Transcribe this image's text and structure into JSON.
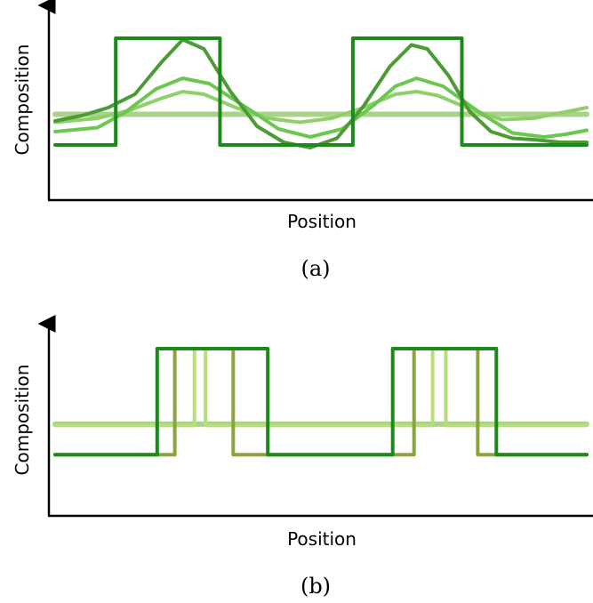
{
  "chart_data": [
    {
      "type": "line",
      "panel": "(a)",
      "xlabel": "Position",
      "ylabel": "Composition",
      "ticks": "none",
      "grid": false,
      "x_domain": [
        0,
        100
      ],
      "y_domain": [
        0,
        100
      ],
      "series": [
        {
          "color": "#a9d38a",
          "points": [
            [
              0,
              43
            ],
            [
              100,
              43
            ]
          ]
        },
        {
          "color": "#8fd06a",
          "points": [
            [
              0,
              37
            ],
            [
              8,
              40
            ],
            [
              14,
              46
            ],
            [
              20,
              55
            ],
            [
              24,
              60
            ],
            [
              28,
              58
            ],
            [
              34,
              48
            ],
            [
              40,
              40
            ],
            [
              46,
              37
            ],
            [
              52,
              40
            ],
            [
              58,
              48
            ],
            [
              64,
              58
            ],
            [
              68,
              60
            ],
            [
              72,
              57
            ],
            [
              78,
              47
            ],
            [
              84,
              39
            ],
            [
              90,
              40
            ],
            [
              95,
              44
            ],
            [
              100,
              48
            ]
          ]
        },
        {
          "color": "#6bc84f",
          "points": [
            [
              0,
              30
            ],
            [
              8,
              33
            ],
            [
              13,
              44
            ],
            [
              19,
              62
            ],
            [
              24,
              70
            ],
            [
              29,
              66
            ],
            [
              36,
              48
            ],
            [
              42,
              32
            ],
            [
              48,
              26
            ],
            [
              54,
              32
            ],
            [
              60,
              50
            ],
            [
              64,
              64
            ],
            [
              68,
              70
            ],
            [
              73,
              64
            ],
            [
              80,
              44
            ],
            [
              86,
              29
            ],
            [
              92,
              26
            ],
            [
              96,
              28
            ],
            [
              100,
              31
            ]
          ]
        },
        {
          "color": "#4d9b34",
          "points": [
            [
              0,
              38
            ],
            [
              5,
              42
            ],
            [
              10,
              48
            ],
            [
              15,
              58
            ],
            [
              20,
              82
            ],
            [
              24,
              99
            ],
            [
              28,
              92
            ],
            [
              33,
              60
            ],
            [
              38,
              34
            ],
            [
              43,
              22
            ],
            [
              48,
              18
            ],
            [
              53,
              25
            ],
            [
              58,
              49
            ],
            [
              63,
              79
            ],
            [
              67,
              95
            ],
            [
              70,
              92
            ],
            [
              74,
              72
            ],
            [
              78,
              45
            ],
            [
              82,
              30
            ],
            [
              86,
              25
            ],
            [
              90,
              24
            ],
            [
              95,
              22
            ],
            [
              100,
              22
            ]
          ]
        },
        {
          "color": "#1b8a1b",
          "points": [
            [
              0,
              20
            ],
            [
              11.4,
              20
            ],
            [
              11.4,
              100
            ],
            [
              31,
              100
            ],
            [
              31,
              20
            ],
            [
              56,
              20
            ],
            [
              56,
              100
            ],
            [
              76.5,
              100
            ],
            [
              76.5,
              20
            ],
            [
              100,
              20
            ]
          ]
        }
      ]
    },
    {
      "type": "line",
      "panel": "(b)",
      "xlabel": "Position",
      "ylabel": "Composition",
      "ticks": "none",
      "grid": false,
      "x_domain": [
        0,
        100
      ],
      "y_domain": [
        0,
        100
      ],
      "series": [
        {
          "color": "#a9d38a",
          "points": [
            [
              0,
              43
            ],
            [
              100,
              43
            ]
          ]
        },
        {
          "color": "#b6de7a",
          "points": [
            [
              0,
              42
            ],
            [
              26.2,
              42
            ],
            [
              26.2,
              100
            ],
            [
              28.3,
              100
            ],
            [
              28.3,
              42
            ],
            [
              71,
              42
            ],
            [
              71,
              100
            ],
            [
              73.5,
              100
            ],
            [
              73.5,
              42
            ],
            [
              100,
              42
            ]
          ]
        },
        {
          "color": "#8aa440",
          "points": [
            [
              0,
              20
            ],
            [
              22.5,
              20
            ],
            [
              22.5,
              100
            ],
            [
              33.5,
              100
            ],
            [
              33.5,
              20
            ],
            [
              67.5,
              20
            ],
            [
              67.5,
              100
            ],
            [
              79.5,
              100
            ],
            [
              79.5,
              20
            ],
            [
              100,
              20
            ]
          ]
        },
        {
          "color": "#1b8a1b",
          "points": [
            [
              0,
              20
            ],
            [
              19.2,
              20
            ],
            [
              19.2,
              100
            ],
            [
              40,
              100
            ],
            [
              40,
              20
            ],
            [
              63.5,
              20
            ],
            [
              63.5,
              100
            ],
            [
              83,
              100
            ],
            [
              83,
              20
            ],
            [
              100,
              20
            ]
          ]
        }
      ]
    }
  ]
}
